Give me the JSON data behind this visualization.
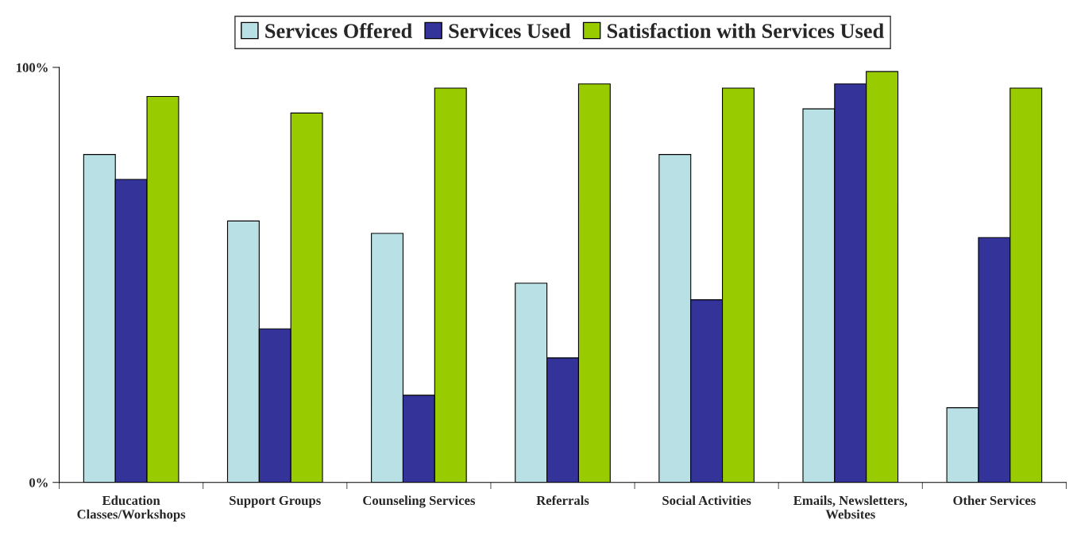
{
  "chart_data": {
    "type": "bar",
    "categories": [
      "Education\nClasses/Workshops",
      "Support Groups",
      "Counseling Services",
      "Referrals",
      "Social Activities",
      "Emails, Newsletters,\nWebsites",
      "Other Services"
    ],
    "series": [
      {
        "name": "Services Offered",
        "color": "#b9e0e4",
        "values": [
          79,
          63,
          60,
          48,
          79,
          90,
          18
        ]
      },
      {
        "name": "Services Used",
        "color": "#333399",
        "values": [
          73,
          37,
          21,
          30,
          44,
          96,
          59
        ]
      },
      {
        "name": "Satisfaction with Services Used",
        "color": "#99cc00",
        "values": [
          93,
          89,
          95,
          96,
          95,
          99,
          95
        ]
      }
    ],
    "ylim": [
      0,
      100
    ],
    "yticks": [
      {
        "value": 0,
        "label": "0%"
      },
      {
        "value": 100,
        "label": "100%"
      }
    ],
    "grid": false,
    "legend": "top"
  }
}
